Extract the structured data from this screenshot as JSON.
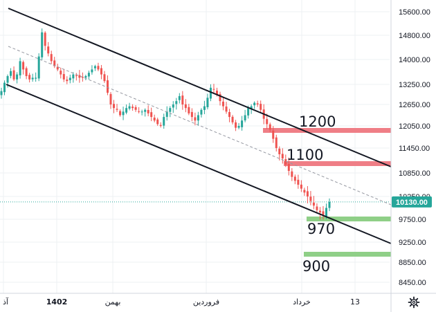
{
  "chart_data": {
    "type": "candlestick",
    "y_axis": {
      "ticks": [
        15600,
        14800,
        14000,
        13250,
        12650,
        12050,
        11450,
        10850,
        10250,
        9750,
        9250,
        8850,
        8450
      ],
      "tick_labels": [
        "15600.00",
        "14800.00",
        "14000.00",
        "13250.00",
        "12650.00",
        "12050.00",
        "11450.00",
        "10850.00",
        "10250.00",
        "9750.00",
        "9250.00",
        "8850.00",
        "8450.00"
      ],
      "position": "right"
    },
    "x_axis": {
      "tick_labels": [
        "آذ",
        "1402",
        "بهمن",
        "فروردین",
        "خرداد",
        "13"
      ]
    },
    "last_price": {
      "value": 10130,
      "label": "10130.00",
      "color": "#26a69a"
    },
    "resistance_levels": [
      {
        "label": "1200",
        "color": "#ef7e86"
      },
      {
        "label": "1100",
        "color": "#ef7e86"
      }
    ],
    "support_levels": [
      {
        "label": "970",
        "color": "#8fcf87"
      },
      {
        "label": "900",
        "color": "#8fcf87"
      }
    ],
    "channel": {
      "description_lines": [
        "upper",
        "lower",
        "middle-dashed"
      ],
      "line_color": "#131722"
    },
    "candle_colors": {
      "up": "#26a69a",
      "down": "#ef5350"
    },
    "close_series": [
      13050,
      13300,
      13500,
      13650,
      13400,
      13550,
      13950,
      13700,
      13500,
      13400,
      13450,
      13450,
      14100,
      14900,
      14450,
      14200,
      13950,
      13800,
      13700,
      13550,
      13400,
      13350,
      13450,
      13550,
      13500,
      13450,
      13450,
      13500,
      13600,
      13700,
      13800,
      13700,
      13550,
      13350,
      13000,
      12650,
      12550,
      12500,
      12350,
      12450,
      12550,
      12600,
      12550,
      12500,
      12450,
      12450,
      12500,
      12400,
      12300,
      12200,
      12100,
      12050,
      12300,
      12450,
      12550,
      12650,
      12750,
      12900,
      12650,
      12550,
      12400,
      12300,
      12200,
      12350,
      12500,
      12600,
      12850,
      13150,
      13100,
      12950,
      12750,
      12600,
      12450,
      12300,
      12150,
      12000,
      12050,
      12200,
      12350,
      12550,
      12600,
      12700,
      12650,
      12500,
      12250,
      12100,
      11950,
      11700,
      11450,
      11300,
      11200,
      11050,
      10900,
      10750,
      10650,
      10550,
      10450,
      10350,
      10250,
      10150,
      10050,
      9950,
      9900,
      9850,
      10000,
      10130
    ]
  }
}
